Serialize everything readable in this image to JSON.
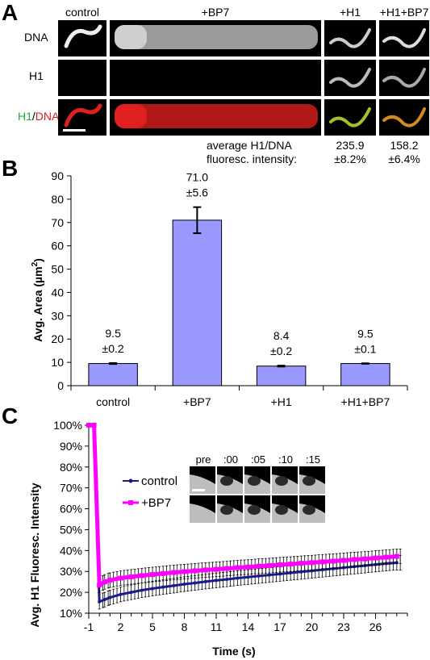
{
  "panel_a": {
    "letter": "A",
    "columns": [
      "control",
      "+BP7",
      "+H1",
      "+H1+BP7"
    ],
    "rows": [
      "DNA",
      "H1"
    ],
    "merge_label_green": "H1",
    "merge_label_sep": "/",
    "merge_label_red": "DNA",
    "intensity_label_line1": "average H1/DNA",
    "intensity_label_line2": "fluoresc. intensity:",
    "intensity_values": [
      {
        "mean": "235.9",
        "err": "±8.2%"
      },
      {
        "mean": "158.2",
        "err": "±6.4%"
      }
    ],
    "colors": {
      "green": "#22a838",
      "red": "#d81e1e"
    }
  },
  "panel_b": {
    "letter": "B",
    "chart_data": {
      "type": "bar",
      "categories": [
        "control",
        "+BP7",
        "+H1",
        "+H1+BP7"
      ],
      "values": [
        9.5,
        71.0,
        8.4,
        9.5
      ],
      "errors": [
        0.2,
        5.6,
        0.2,
        0.1
      ],
      "value_labels": [
        "9.5",
        "71.0",
        "8.4",
        "9.5"
      ],
      "error_labels": [
        "±0.2",
        "±5.6",
        "±0.2",
        "±0.1"
      ],
      "ylabel": "Avg. Area (µm",
      "ylabel_sup": "2",
      "ylabel_close": ")",
      "ylim": [
        0,
        90
      ],
      "yticks": [
        "0",
        "10",
        "20",
        "30",
        "40",
        "50",
        "60",
        "70",
        "80",
        "90"
      ],
      "bar_color": "#9999ff",
      "grid": false
    }
  },
  "panel_c": {
    "letter": "C",
    "chart_data": {
      "type": "line",
      "x": [
        -1,
        -0.5,
        0,
        0.5,
        1,
        2,
        3,
        4,
        5,
        6,
        7,
        8,
        9,
        10,
        11,
        12,
        13,
        14,
        15,
        16,
        17,
        18,
        19,
        20,
        21,
        22,
        23,
        24,
        25,
        26,
        27,
        28
      ],
      "series": [
        {
          "name": "control",
          "color": "#1a1a8c",
          "values": [
            100,
            100,
            15.5,
            16.5,
            17.5,
            19.0,
            20.0,
            21.0,
            21.8,
            22.5,
            23.2,
            23.9,
            24.5,
            25.1,
            25.7,
            26.2,
            26.8,
            27.3,
            27.8,
            28.3,
            28.8,
            29.3,
            29.8,
            30.3,
            30.8,
            31.3,
            31.8,
            32.3,
            32.8,
            33.3,
            33.8,
            34.2
          ],
          "error": 3.5
        },
        {
          "name": "+BP7",
          "color": "#ff00ff",
          "values": [
            100,
            100,
            23.5,
            25.0,
            25.8,
            26.8,
            27.4,
            28.0,
            28.5,
            29.0,
            29.5,
            29.9,
            30.3,
            30.7,
            31.0,
            31.4,
            31.8,
            32.1,
            32.5,
            32.8,
            33.2,
            33.5,
            33.9,
            34.2,
            34.6,
            34.9,
            35.3,
            35.7,
            36.0,
            36.4,
            36.8,
            37.2
          ],
          "error": 3.5
        }
      ],
      "xlabel": "Time (s)",
      "ylabel": "Avg. H1 Fluoresc. Intensity",
      "xlim": [
        -1,
        29
      ],
      "ylim": [
        10,
        100
      ],
      "xticks": [
        "-1",
        "2",
        "5",
        "8",
        "11",
        "14",
        "17",
        "20",
        "23",
        "26"
      ],
      "yticks": [
        "10%",
        "20%",
        "30%",
        "40%",
        "50%",
        "60%",
        "70%",
        "80%",
        "90%",
        "100%"
      ],
      "legend_position": "center"
    },
    "inset_labels": [
      "pre",
      ":00",
      ":05",
      ":10",
      ":15"
    ]
  }
}
